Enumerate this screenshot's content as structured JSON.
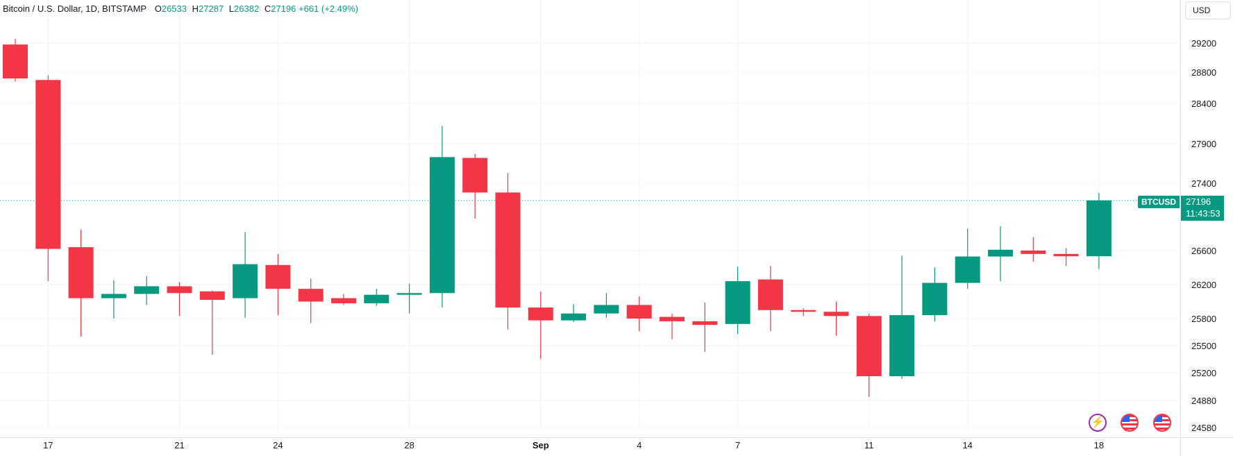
{
  "header": {
    "symbol": "Bitcoin / U.S. Dollar, 1D, BITSTAMP",
    "open_label": "O",
    "open": "26533",
    "high_label": "H",
    "high": "27287",
    "low_label": "L",
    "low": "26382",
    "close_label": "C",
    "close": "27196",
    "change": "+661 (+2.49%)"
  },
  "currency_button": "USD",
  "price_label": {
    "symbol": "BTCUSD",
    "price": "27196",
    "countdown": "11:43:53"
  },
  "colors": {
    "up": "#089981",
    "down": "#f23645",
    "grid": "#f0f3fa",
    "text": "#131722"
  },
  "events": [
    "lightning-icon",
    "us-flag-icon",
    "us-flag-icon"
  ],
  "chart_data": {
    "type": "candlestick",
    "x_axis_labels": [
      {
        "label": "17",
        "bar": 1
      },
      {
        "label": "21",
        "bar": 5
      },
      {
        "label": "24",
        "bar": 8
      },
      {
        "label": "28",
        "bar": 12
      },
      {
        "label": "Sep",
        "bar": 16,
        "bold": true
      },
      {
        "label": "4",
        "bar": 19
      },
      {
        "label": "7",
        "bar": 22
      },
      {
        "label": "11",
        "bar": 26
      },
      {
        "label": "14",
        "bar": 29
      },
      {
        "label": "18",
        "bar": 33
      }
    ],
    "y_ticks": [
      29200,
      28800,
      28400,
      27900,
      27400,
      26600,
      26200,
      25800,
      25500,
      25200,
      24880,
      24580
    ],
    "ylim": [
      24500,
      29300
    ],
    "last_price": 27196,
    "candles": [
      {
        "o": 29180,
        "h": 29260,
        "l": 28680,
        "c": 28720
      },
      {
        "o": 28700,
        "h": 28760,
        "l": 26240,
        "c": 26620
      },
      {
        "o": 26640,
        "h": 26850,
        "l": 25600,
        "c": 26040
      },
      {
        "o": 26040,
        "h": 26250,
        "l": 25800,
        "c": 26090
      },
      {
        "o": 26090,
        "h": 26300,
        "l": 25960,
        "c": 26180
      },
      {
        "o": 26180,
        "h": 26230,
        "l": 25830,
        "c": 26100
      },
      {
        "o": 26120,
        "h": 26130,
        "l": 25400,
        "c": 26020
      },
      {
        "o": 26040,
        "h": 26820,
        "l": 25810,
        "c": 26440
      },
      {
        "o": 26430,
        "h": 26560,
        "l": 25840,
        "c": 26150
      },
      {
        "o": 26150,
        "h": 26270,
        "l": 25750,
        "c": 26000
      },
      {
        "o": 26040,
        "h": 26090,
        "l": 25960,
        "c": 25980
      },
      {
        "o": 25980,
        "h": 26150,
        "l": 25950,
        "c": 26080
      },
      {
        "o": 26080,
        "h": 26210,
        "l": 25860,
        "c": 26100
      },
      {
        "o": 26100,
        "h": 28120,
        "l": 25930,
        "c": 27730
      },
      {
        "o": 27720,
        "h": 27770,
        "l": 26980,
        "c": 27290
      },
      {
        "o": 27290,
        "h": 27530,
        "l": 25680,
        "c": 25930
      },
      {
        "o": 25930,
        "h": 26120,
        "l": 25350,
        "c": 25780
      },
      {
        "o": 25780,
        "h": 25970,
        "l": 25760,
        "c": 25860
      },
      {
        "o": 25860,
        "h": 26100,
        "l": 25810,
        "c": 25960
      },
      {
        "o": 25960,
        "h": 26060,
        "l": 25660,
        "c": 25800
      },
      {
        "o": 25820,
        "h": 25860,
        "l": 25570,
        "c": 25770
      },
      {
        "o": 25770,
        "h": 25990,
        "l": 25430,
        "c": 25730
      },
      {
        "o": 25740,
        "h": 26410,
        "l": 25630,
        "c": 26240
      },
      {
        "o": 26260,
        "h": 26420,
        "l": 25660,
        "c": 25900
      },
      {
        "o": 25900,
        "h": 25920,
        "l": 25830,
        "c": 25880
      },
      {
        "o": 25880,
        "h": 26000,
        "l": 25610,
        "c": 25830
      },
      {
        "o": 25830,
        "h": 25860,
        "l": 24920,
        "c": 25160
      },
      {
        "o": 25160,
        "h": 26540,
        "l": 25130,
        "c": 25840
      },
      {
        "o": 25840,
        "h": 26400,
        "l": 25770,
        "c": 26220
      },
      {
        "o": 26220,
        "h": 26860,
        "l": 26150,
        "c": 26530
      },
      {
        "o": 26530,
        "h": 26890,
        "l": 26240,
        "c": 26610
      },
      {
        "o": 26600,
        "h": 26760,
        "l": 26470,
        "c": 26560
      },
      {
        "o": 26560,
        "h": 26630,
        "l": 26420,
        "c": 26533
      },
      {
        "o": 26533,
        "h": 27287,
        "l": 26382,
        "c": 27196
      }
    ]
  }
}
